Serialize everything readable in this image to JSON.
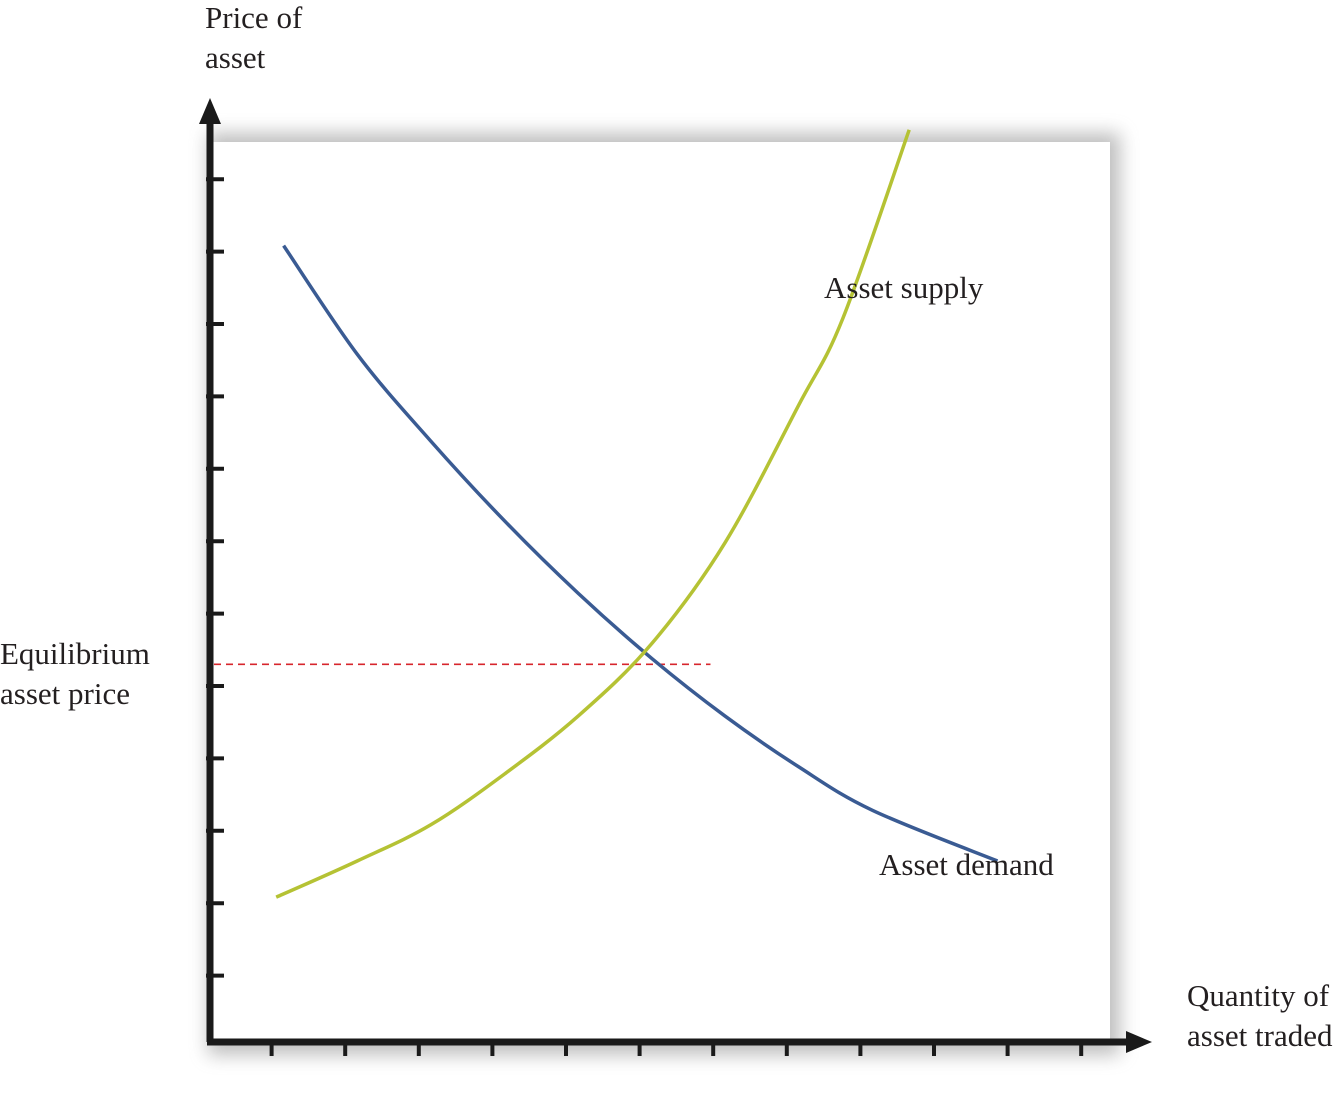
{
  "chart_data": {
    "type": "line",
    "title": "",
    "ylabel_lines": [
      "Price of",
      "asset"
    ],
    "xlabel_lines": [
      "Quantity of",
      "asset traded"
    ],
    "equilibrium_label_lines": [
      "Equilibrium",
      "asset price"
    ],
    "xlim": [
      0,
      12
    ],
    "ylim": [
      0,
      12
    ],
    "x_ticks": [
      1,
      2,
      3,
      4,
      5,
      6,
      7,
      8,
      9,
      10,
      11,
      12
    ],
    "y_ticks": [
      1,
      2,
      3,
      4,
      5,
      6,
      7,
      8,
      9,
      10,
      11,
      12
    ],
    "series": [
      {
        "name": "Asset demand",
        "color": "#3a5b93",
        "x": [
          1.0,
          2.0,
          3.0,
          4.0,
          5.0,
          6.0,
          7.0,
          8.0,
          9.0,
          10.7
        ],
        "y": [
          11.0,
          9.5,
          8.3,
          7.2,
          6.2,
          5.3,
          4.5,
          3.8,
          3.2,
          2.5
        ]
      },
      {
        "name": "Asset supply",
        "color": "#b5c234",
        "x": [
          0.9,
          2.0,
          3.0,
          4.0,
          5.0,
          6.0,
          7.0,
          8.0,
          8.6,
          9.5
        ],
        "y": [
          2.0,
          2.5,
          3.0,
          3.7,
          4.5,
          5.5,
          6.9,
          8.8,
          10.0,
          12.6
        ]
      }
    ],
    "equilibrium": {
      "x": 6.8,
      "y": 5.3,
      "line_color": "#d7262d"
    }
  }
}
